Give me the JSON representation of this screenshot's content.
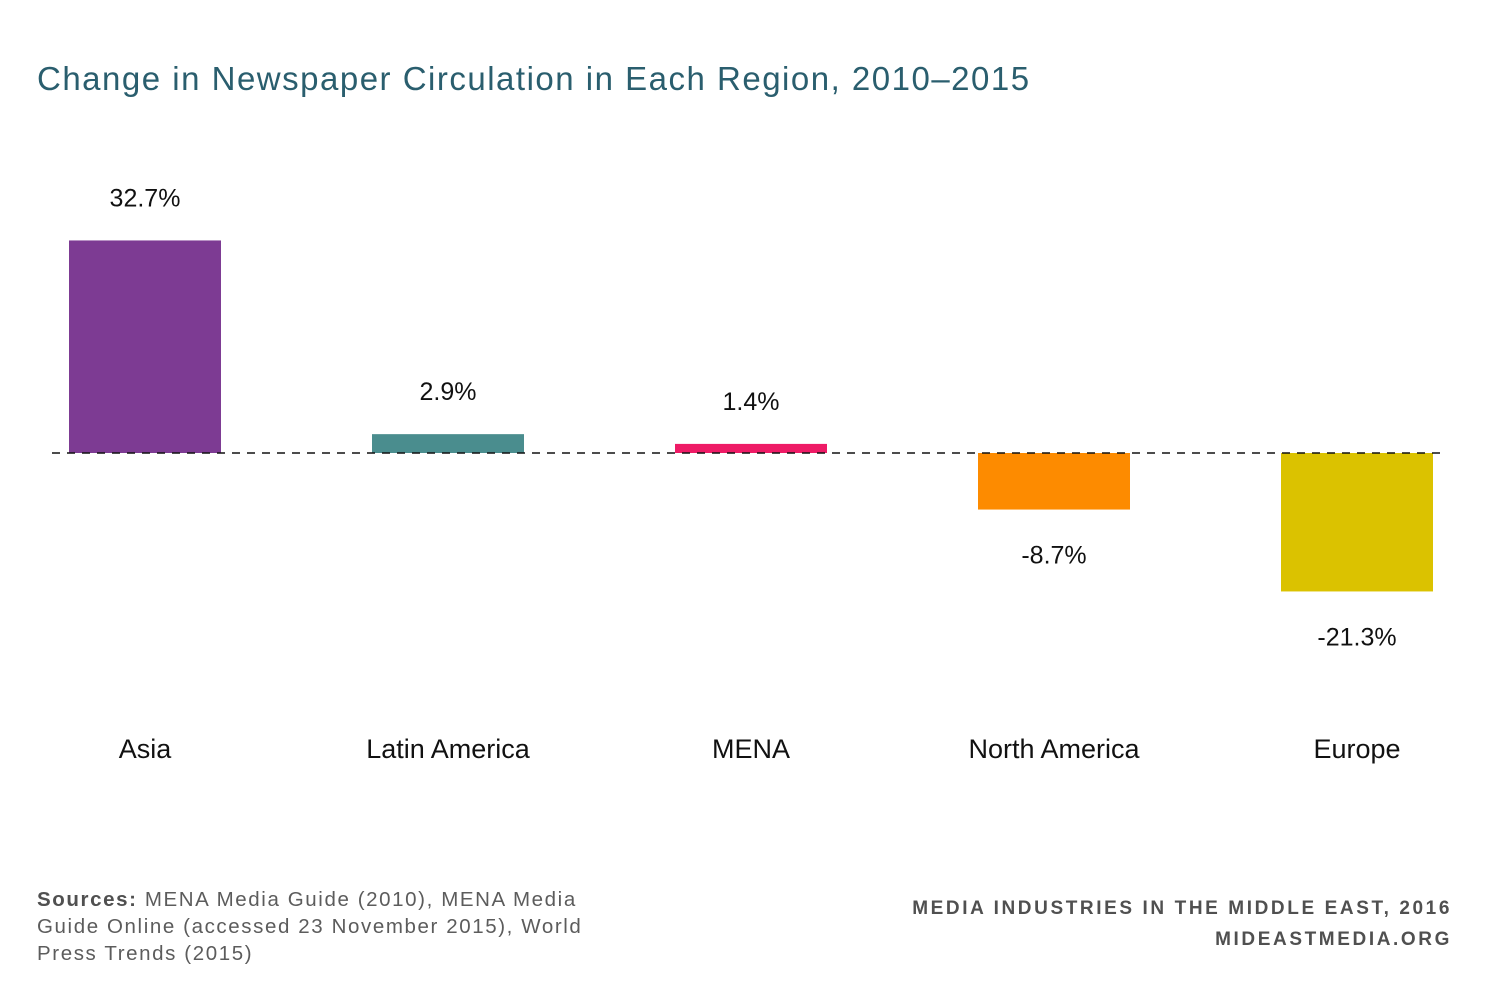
{
  "chart_data": {
    "type": "bar",
    "title": "Change in Newspaper Circulation in Each Region, 2010–2015",
    "categories": [
      "Asia",
      "Latin America",
      "MENA",
      "North America",
      "Europe"
    ],
    "values": [
      32.7,
      2.9,
      1.4,
      -8.7,
      -21.3
    ],
    "value_labels": [
      "32.7%",
      "2.9%",
      "1.4%",
      "-8.7%",
      "-21.3%"
    ],
    "colors": [
      "#7d3b93",
      "#4a8d8e",
      "#ee1b66",
      "#fd8b00",
      "#dbc200"
    ],
    "baseline": 0,
    "baseline_style": "dashed",
    "ylim": [
      -25,
      35
    ],
    "grid": false
  },
  "footer": {
    "sources_label": "Sources:",
    "sources_text": " MENA Media Guide (2010), MENA Media Guide Online (accessed 23 November 2015), World Press Trends (2015)",
    "credit_line1": "MEDIA INDUSTRIES IN THE MIDDLE EAST, 2016",
    "credit_line2": "MIDEASTMEDIA.ORG"
  }
}
